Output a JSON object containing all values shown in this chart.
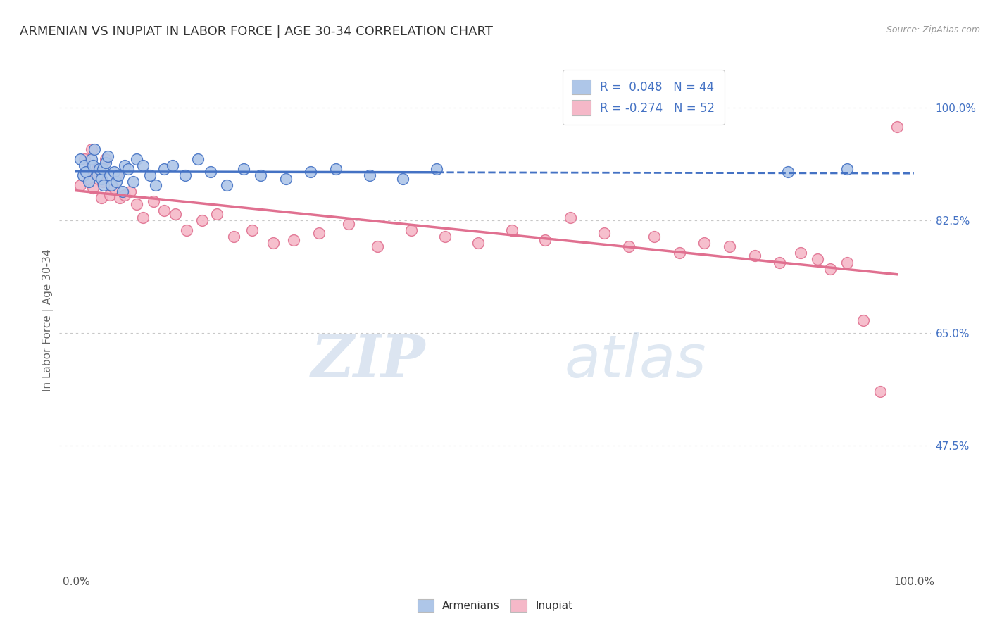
{
  "title": "ARMENIAN VS INUPIAT IN LABOR FORCE | AGE 30-34 CORRELATION CHART",
  "source": "Source: ZipAtlas.com",
  "ylabel": "In Labor Force | Age 30-34",
  "xlim": [
    -0.02,
    1.02
  ],
  "ylim": [
    0.28,
    1.06
  ],
  "xticklabels": [
    "0.0%",
    "100.0%"
  ],
  "xtick_positions": [
    0.0,
    1.0
  ],
  "ytick_positions": [
    0.475,
    0.65,
    0.825,
    1.0
  ],
  "ytick_labels": [
    "47.5%",
    "65.0%",
    "82.5%",
    "100.0%"
  ],
  "armenian_R": 0.048,
  "armenian_N": 44,
  "inupiat_R": -0.274,
  "inupiat_N": 52,
  "armenian_color": "#aec6e8",
  "inupiat_color": "#f5b8c8",
  "armenian_line_color": "#4472c4",
  "inupiat_line_color": "#e07090",
  "watermark_zip": "ZIP",
  "watermark_atlas": "atlas",
  "armenian_x": [
    0.005,
    0.008,
    0.01,
    0.012,
    0.015,
    0.018,
    0.02,
    0.022,
    0.025,
    0.028,
    0.03,
    0.032,
    0.033,
    0.035,
    0.038,
    0.04,
    0.042,
    0.045,
    0.048,
    0.05,
    0.055,
    0.058,
    0.062,
    0.068,
    0.072,
    0.08,
    0.088,
    0.095,
    0.105,
    0.115,
    0.13,
    0.145,
    0.16,
    0.18,
    0.2,
    0.22,
    0.25,
    0.28,
    0.31,
    0.35,
    0.39,
    0.43,
    0.85,
    0.92
  ],
  "armenian_y": [
    0.92,
    0.895,
    0.91,
    0.9,
    0.885,
    0.92,
    0.91,
    0.935,
    0.895,
    0.905,
    0.89,
    0.905,
    0.88,
    0.915,
    0.925,
    0.895,
    0.88,
    0.9,
    0.885,
    0.895,
    0.87,
    0.91,
    0.905,
    0.885,
    0.92,
    0.91,
    0.895,
    0.88,
    0.905,
    0.91,
    0.895,
    0.92,
    0.9,
    0.88,
    0.905,
    0.895,
    0.89,
    0.9,
    0.905,
    0.895,
    0.89,
    0.905,
    0.9,
    0.905
  ],
  "inupiat_x": [
    0.005,
    0.01,
    0.015,
    0.018,
    0.02,
    0.025,
    0.028,
    0.03,
    0.032,
    0.035,
    0.04,
    0.045,
    0.048,
    0.052,
    0.058,
    0.065,
    0.072,
    0.08,
    0.092,
    0.105,
    0.118,
    0.132,
    0.15,
    0.168,
    0.188,
    0.21,
    0.235,
    0.26,
    0.29,
    0.325,
    0.36,
    0.4,
    0.44,
    0.48,
    0.52,
    0.56,
    0.59,
    0.63,
    0.66,
    0.69,
    0.72,
    0.75,
    0.78,
    0.81,
    0.84,
    0.865,
    0.885,
    0.9,
    0.92,
    0.94,
    0.96,
    0.98
  ],
  "inupiat_y": [
    0.88,
    0.92,
    0.89,
    0.935,
    0.875,
    0.905,
    0.895,
    0.86,
    0.885,
    0.92,
    0.865,
    0.875,
    0.895,
    0.86,
    0.865,
    0.87,
    0.85,
    0.83,
    0.855,
    0.84,
    0.835,
    0.81,
    0.825,
    0.835,
    0.8,
    0.81,
    0.79,
    0.795,
    0.805,
    0.82,
    0.785,
    0.81,
    0.8,
    0.79,
    0.81,
    0.795,
    0.83,
    0.805,
    0.785,
    0.8,
    0.775,
    0.79,
    0.785,
    0.77,
    0.76,
    0.775,
    0.765,
    0.75,
    0.76,
    0.67,
    0.56,
    0.97
  ]
}
